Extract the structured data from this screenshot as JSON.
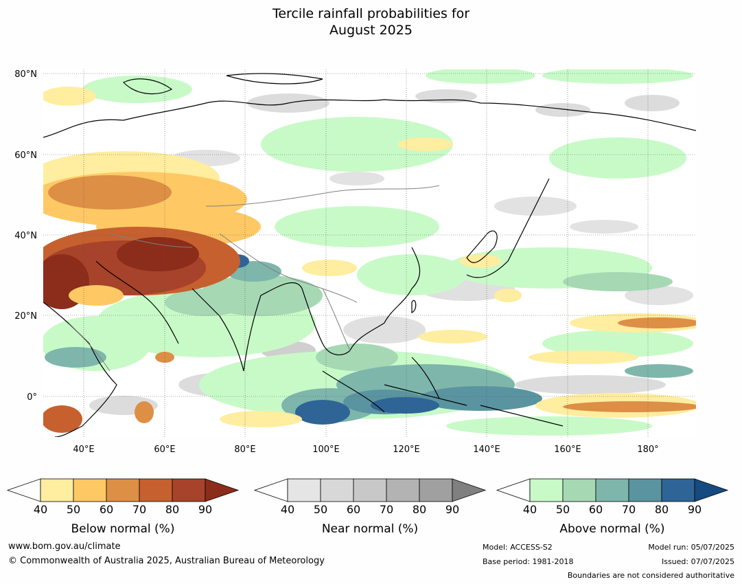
{
  "title_line1": "Tercile rainfall probabilities for",
  "title_line2": "August 2025",
  "latitude_labels": [
    "80°N",
    "60°N",
    "40°N",
    "20°N",
    "0°"
  ],
  "longitude_labels": [
    "40°E",
    "60°E",
    "80°E",
    "100°E",
    "120°E",
    "140°E",
    "160°E",
    "180°"
  ],
  "colorbars": [
    {
      "title": "Below normal (%)",
      "ticks": [
        "40",
        "50",
        "60",
        "70",
        "80",
        "90"
      ],
      "colors": [
        "#ffffff",
        "#ffeda0",
        "#fec965",
        "#dd8f45",
        "#c6602f",
        "#a7432a",
        "#8c2c1a"
      ]
    },
    {
      "title": "Near normal (%)",
      "ticks": [
        "40",
        "50",
        "60",
        "70",
        "80",
        "90"
      ],
      "colors": [
        "#ffffff",
        "#e5e5e5",
        "#d8d8d8",
        "#c8c8c8",
        "#b3b3b3",
        "#a0a0a0",
        "#808080"
      ]
    },
    {
      "title": "Above normal (%)",
      "ticks": [
        "40",
        "50",
        "60",
        "70",
        "80",
        "90"
      ],
      "colors": [
        "#ffffff",
        "#c8fac8",
        "#a6d8b4",
        "#7eb6ac",
        "#5a94a0",
        "#2f6496",
        "#164a80"
      ]
    }
  ],
  "footer": {
    "website": "www.bom.gov.au/climate",
    "copyright": "© Commonwealth of Australia 2025, Australian Bureau of Meteorology",
    "model": "Model: ACCESS-S2",
    "base_period": "Base period: 1981-2018",
    "model_run": "Model run: 05/07/2025",
    "issued": "Issued: 07/07/2025",
    "boundaries": "Boundaries are not considered authoritative"
  }
}
